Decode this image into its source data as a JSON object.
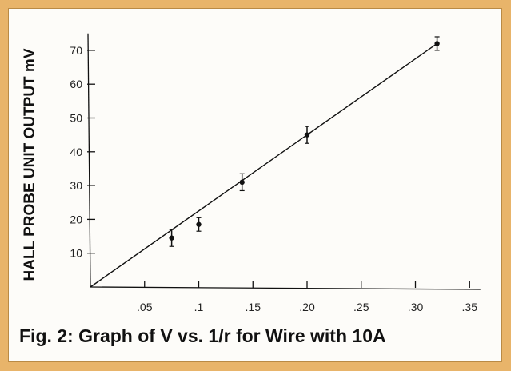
{
  "figure": {
    "caption": "Fig. 2: Graph of V vs. 1/r for Wire with 10A"
  },
  "chart_data": {
    "type": "scatter",
    "ylabel": "HALL PROBE UNIT OUTPUT mV",
    "xlabel": "",
    "xlim": [
      0,
      0.36
    ],
    "ylim": [
      0,
      75
    ],
    "x_ticks": [
      0.05,
      0.1,
      0.15,
      0.2,
      0.25,
      0.3,
      0.35
    ],
    "x_tick_labels": [
      ".05",
      ".1",
      ".15",
      ".20",
      ".25",
      ".30",
      ".35"
    ],
    "y_ticks": [
      10,
      20,
      30,
      40,
      50,
      60,
      70
    ],
    "y_tick_labels": [
      "10",
      "20",
      "30",
      "40",
      "50",
      "60",
      "70"
    ],
    "series": [
      {
        "points": [
          {
            "x": 0.075,
            "y": 14.5,
            "err": 2.5
          },
          {
            "x": 0.1,
            "y": 18.5,
            "err": 2
          },
          {
            "x": 0.14,
            "y": 31,
            "err": 2.5
          },
          {
            "x": 0.2,
            "y": 45,
            "err": 2.5
          },
          {
            "x": 0.32,
            "y": 72,
            "err": 2
          }
        ]
      }
    ],
    "fit_line": {
      "x": [
        0,
        0.32
      ],
      "y": [
        0,
        72
      ]
    },
    "grid": false,
    "colors": {
      "ink": "#111111",
      "background": "#fdfcf9",
      "border": "#e8b46a"
    }
  }
}
